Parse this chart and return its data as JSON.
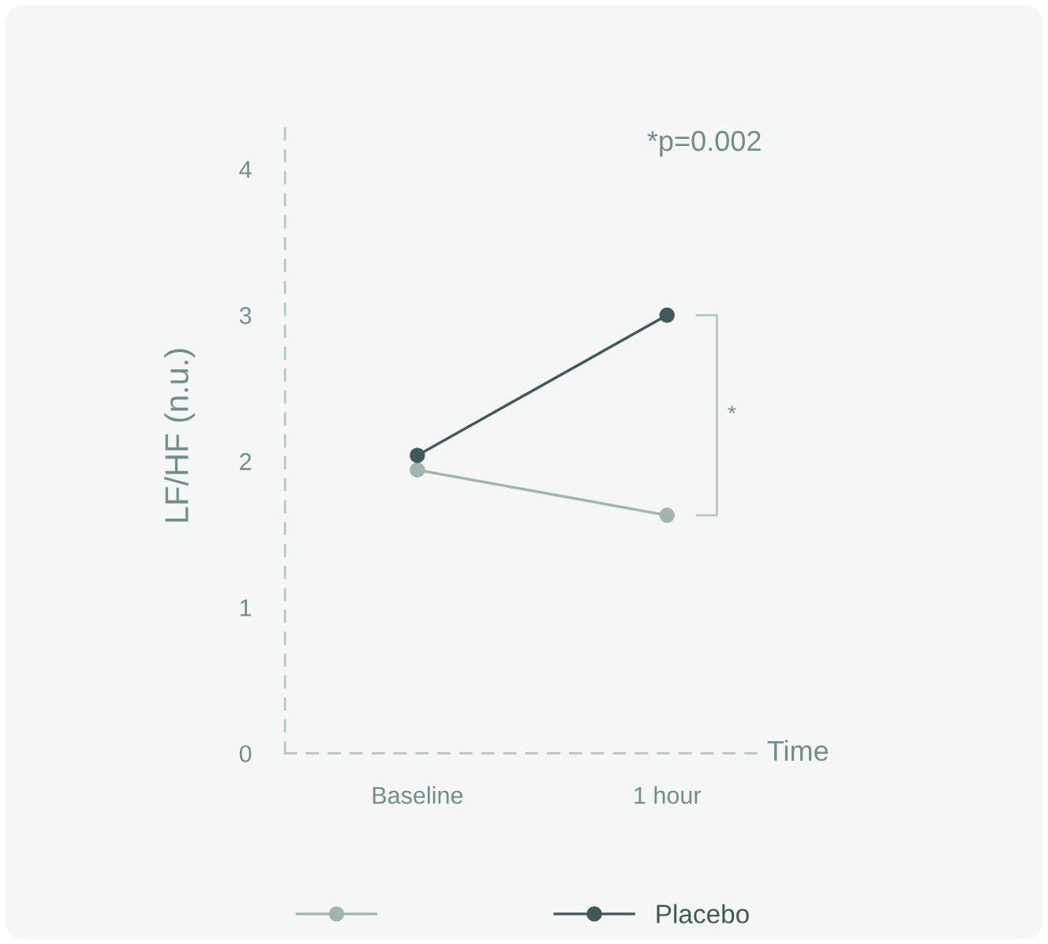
{
  "chart_data": {
    "type": "line",
    "xlabel": "Time",
    "ylabel": "LF/HF (n.u.)",
    "categories": [
      "Baseline",
      "1 hour"
    ],
    "series": [
      {
        "color": "#9fb5b1",
        "values": [
          1.94,
          1.63
        ]
      },
      {
        "name": "Placebo",
        "color": "#3f5a58",
        "values": [
          2.04,
          3.0
        ]
      }
    ],
    "ylim": [
      0,
      4.35
    ],
    "yticks": [
      0,
      1,
      2,
      3,
      4
    ],
    "annotations": [
      "*p=0.002",
      "*"
    ],
    "grid": false,
    "legend": "bottom",
    "marker": "circle",
    "line_style": "solid"
  }
}
